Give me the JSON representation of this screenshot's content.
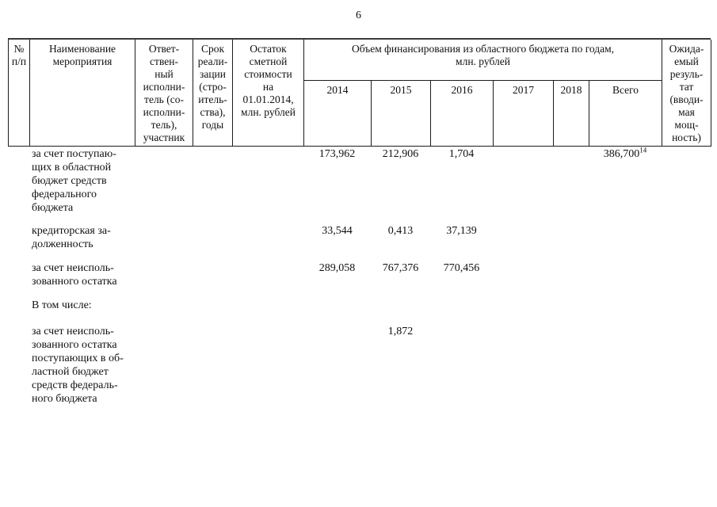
{
  "page": {
    "number": "6"
  },
  "table": {
    "header": {
      "col_num": "№\nп/п",
      "col_name": "Наименование\nмероприятия",
      "col_executor": "Ответ-\nствен-\nный\nисполни-\nтель (со-\nисполни-\nтель),\nучастник",
      "col_term": "Срок\nреали-\nзации\n(стро-\nитель-\nства),\nгоды",
      "col_balance": "Остаток\nсметной\nстоимости\nна\n01.01.2014,\nмлн. рублей",
      "group_financing": "Объем финансирования из областного бюджета по годам,\nмлн. рублей",
      "years": [
        "2014",
        "2015",
        "2016",
        "2017",
        "2018",
        "Всего"
      ],
      "col_result": "Ожида-\nемый\nрезуль-\nтат\n(вводи-\nмая\nмощ-\nность)"
    },
    "rows": [
      {
        "name": "за счет поступаю-\nщих в областной\nбюджет средств\nфедерального\nбюджета",
        "y2014": "173,962",
        "y2015": "212,906",
        "y2016": "1,704",
        "y2017": "",
        "y2018": "",
        "total": "386,700",
        "total_footnote": "14"
      },
      {
        "name": "кредиторская за-\nдолженность",
        "y2014": "33,544",
        "y2015": "0,413",
        "y2016": "37,139",
        "y2017": "",
        "y2018": "",
        "total": "",
        "total_footnote": ""
      },
      {
        "name": "за счет неисполь-\nзованного остатка",
        "y2014": "289,058",
        "y2015": "767,376",
        "y2016": "770,456",
        "y2017": "",
        "y2018": "",
        "total": "",
        "total_footnote": ""
      },
      {
        "name": "В том числе:",
        "y2014": "",
        "y2015": "",
        "y2016": "",
        "y2017": "",
        "y2018": "",
        "total": "",
        "total_footnote": ""
      },
      {
        "name": "за счет неисполь-\nзованного остатка\nпоступающих в об-\nластной бюджет\nсредств федераль-\nного бюджета",
        "y2014": "",
        "y2015": "1,872",
        "y2016": "",
        "y2017": "",
        "y2018": "",
        "total": "",
        "total_footnote": ""
      }
    ]
  }
}
